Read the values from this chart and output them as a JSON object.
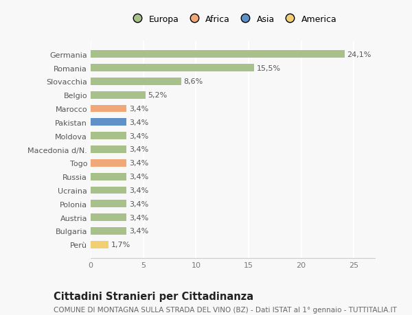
{
  "countries": [
    "Germania",
    "Romania",
    "Slovacchia",
    "Belgio",
    "Marocco",
    "Pakistan",
    "Moldova",
    "Macedonia d/N.",
    "Togo",
    "Russia",
    "Ucraina",
    "Polonia",
    "Austria",
    "Bulgaria",
    "Perù"
  ],
  "values": [
    24.1,
    15.5,
    8.6,
    5.2,
    3.4,
    3.4,
    3.4,
    3.4,
    3.4,
    3.4,
    3.4,
    3.4,
    3.4,
    3.4,
    1.7
  ],
  "labels": [
    "24,1%",
    "15,5%",
    "8,6%",
    "5,2%",
    "3,4%",
    "3,4%",
    "3,4%",
    "3,4%",
    "3,4%",
    "3,4%",
    "3,4%",
    "3,4%",
    "3,4%",
    "3,4%",
    "1,7%"
  ],
  "continents": [
    "Europa",
    "Europa",
    "Europa",
    "Europa",
    "Africa",
    "Asia",
    "Europa",
    "Europa",
    "Africa",
    "Europa",
    "Europa",
    "Europa",
    "Europa",
    "Europa",
    "America"
  ],
  "continent_colors": {
    "Europa": "#a8c08a",
    "Africa": "#f0a878",
    "Asia": "#6090c8",
    "America": "#f0d070"
  },
  "legend_order": [
    "Europa",
    "Africa",
    "Asia",
    "America"
  ],
  "legend_colors": [
    "#a8c08a",
    "#f0a878",
    "#6090c8",
    "#f0d070"
  ],
  "xlim": [
    0,
    27
  ],
  "xticks": [
    0,
    5,
    10,
    15,
    20,
    25
  ],
  "title": "Cittadini Stranieri per Cittadinanza",
  "subtitle": "COMUNE DI MONTAGNA SULLA STRADA DEL VINO (BZ) - Dati ISTAT al 1° gennaio - TUTTITALIA.IT",
  "bg_color": "#f8f8f8",
  "bar_height": 0.55,
  "label_fontsize": 8.0,
  "ytick_fontsize": 8.0,
  "xtick_fontsize": 8.0,
  "title_fontsize": 10.5,
  "subtitle_fontsize": 7.5
}
